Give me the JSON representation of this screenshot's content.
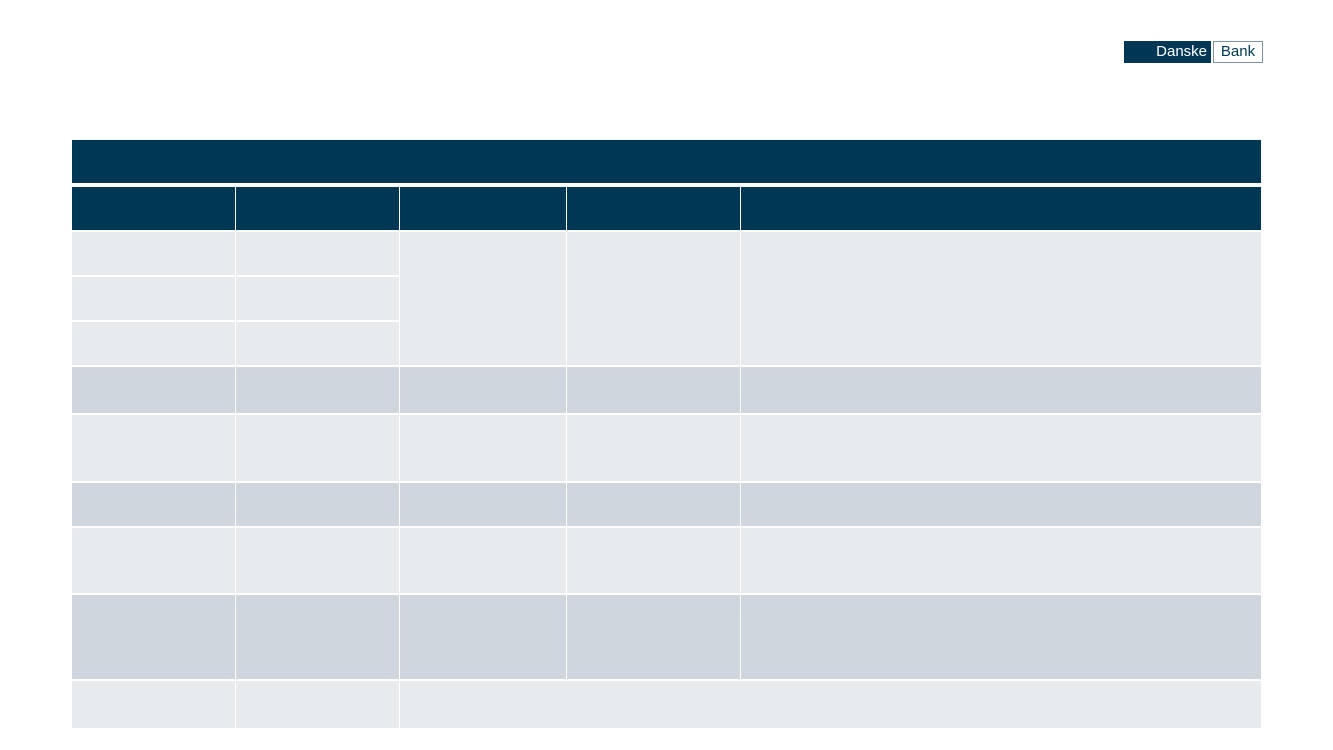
{
  "logo": {
    "left": "Danske",
    "right": "Bank"
  }
}
